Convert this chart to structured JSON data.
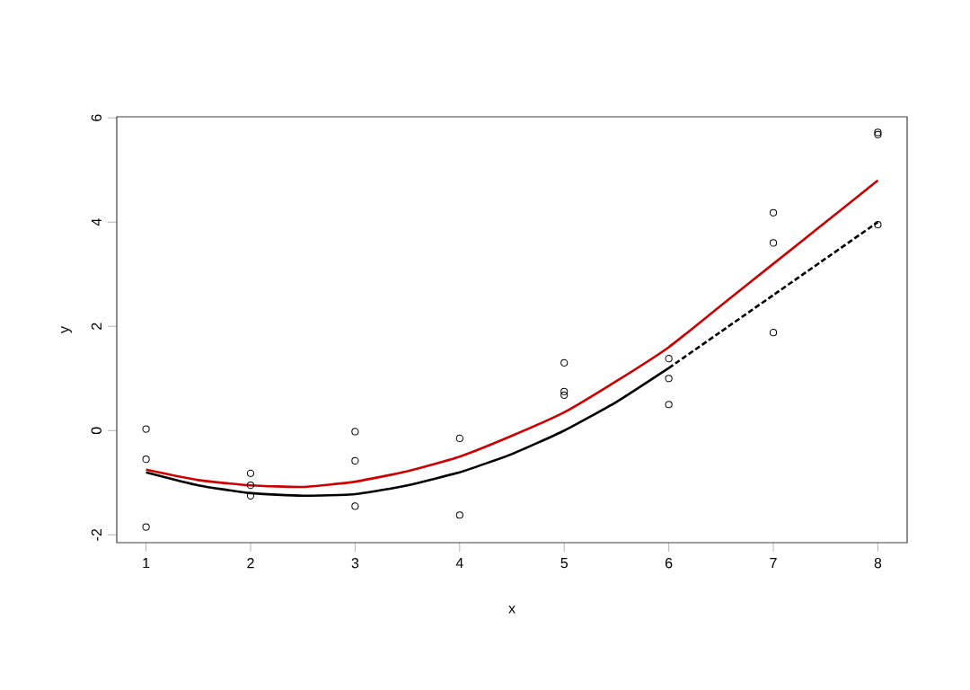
{
  "chart_data": {
    "type": "scatter",
    "xlabel": "x",
    "ylabel": "y",
    "xlim": [
      0.72,
      8.28
    ],
    "ylim": [
      -2.15,
      6.02
    ],
    "xticks": [
      1,
      2,
      3,
      4,
      5,
      6,
      7,
      8
    ],
    "yticks": [
      -2,
      0,
      2,
      4,
      6
    ],
    "grid": false,
    "series": [
      {
        "color": "#000000",
        "marker": "circle",
        "x": [
          1,
          1,
          1,
          2,
          2,
          2,
          3,
          3,
          3,
          4,
          4,
          5,
          5,
          5,
          6,
          6,
          6,
          7,
          7,
          7,
          8,
          8,
          8
        ],
        "values": [
          0.03,
          -0.55,
          -1.85,
          -0.82,
          -1.05,
          -1.25,
          -0.02,
          -0.58,
          -1.45,
          -0.15,
          -1.62,
          1.3,
          0.75,
          0.68,
          1.38,
          1.0,
          0.5,
          4.18,
          3.6,
          1.88,
          5.72,
          5.68,
          3.95
        ]
      },
      {
        "type": "line",
        "color": "#cc0000",
        "marker": "none",
        "line_style": "solid",
        "x": [
          1,
          1.5,
          2,
          2.5,
          3,
          3.5,
          4,
          4.5,
          5,
          5.5,
          6,
          6.5,
          7,
          7.5,
          8
        ],
        "values": [
          -0.75,
          -0.95,
          -1.05,
          -1.08,
          -0.98,
          -0.78,
          -0.5,
          -0.1,
          0.35,
          0.95,
          1.6,
          2.4,
          3.2,
          4.0,
          4.8
        ]
      },
      {
        "type": "line",
        "color": "#000000",
        "marker": "none",
        "line_style": "solid",
        "x": [
          1,
          1.5,
          2,
          2.5,
          3,
          3.5,
          4,
          4.5,
          5,
          5.5,
          6
        ],
        "values": [
          -0.8,
          -1.05,
          -1.2,
          -1.25,
          -1.22,
          -1.05,
          -0.8,
          -0.45,
          0.0,
          0.55,
          1.2
        ]
      },
      {
        "type": "line",
        "color": "#000000",
        "marker": "none",
        "line_style": "dashed",
        "x": [
          6,
          6.5,
          7,
          7.5,
          8
        ],
        "values": [
          1.2,
          1.9,
          2.6,
          3.3,
          4.0
        ]
      }
    ]
  }
}
